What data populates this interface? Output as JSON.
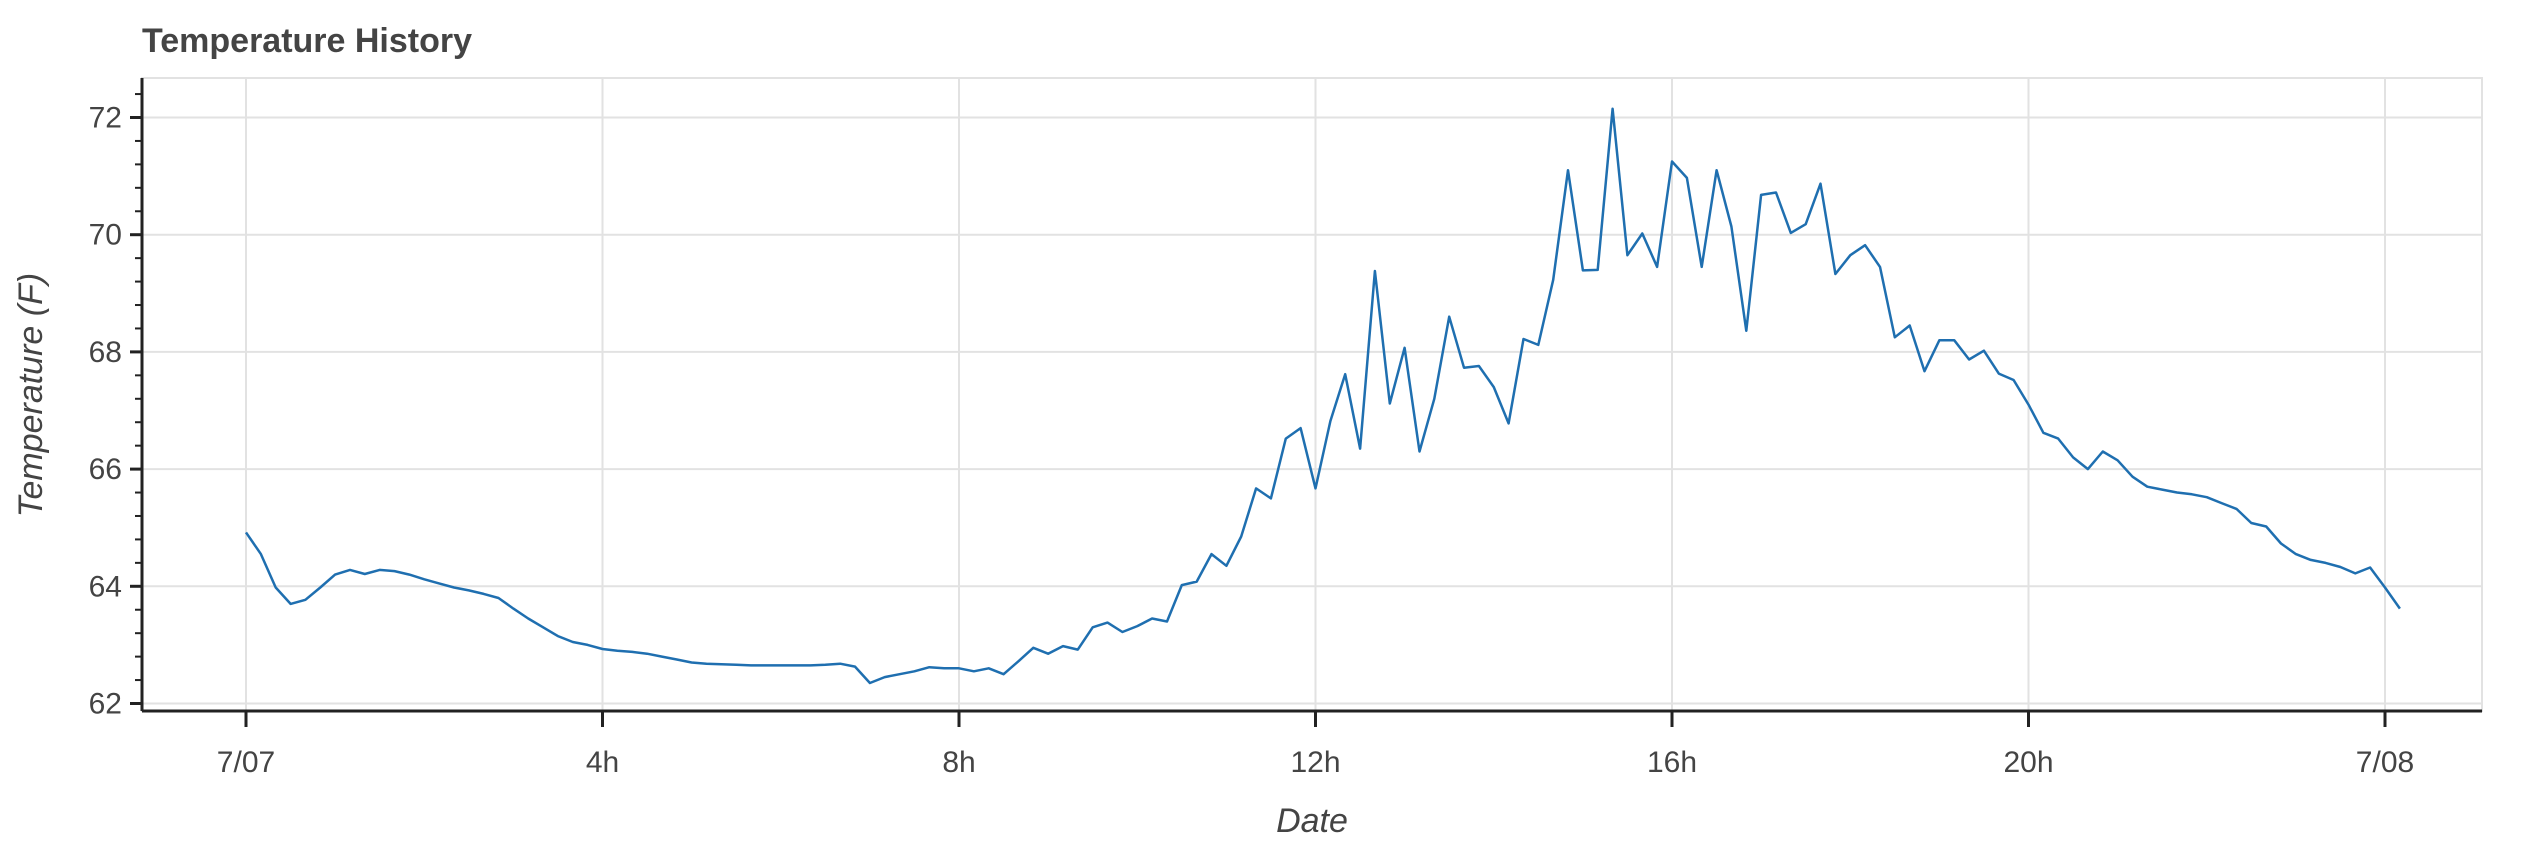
{
  "chart_data": {
    "type": "line",
    "title": "Temperature History",
    "xlabel": "Date",
    "ylabel": "Temperature (F)",
    "x_start": "7/07 00:00",
    "x_end": "7/08 00:00",
    "x_step_minutes": 10,
    "x_tick_hours": [
      0,
      4,
      8,
      12,
      16,
      20,
      24
    ],
    "x_tick_labels": [
      "7/07",
      "4h",
      "8h",
      "12h",
      "16h",
      "20h",
      "7/08"
    ],
    "ylim": [
      62,
      72.7
    ],
    "y_ticks": [
      62,
      64,
      66,
      68,
      70,
      72
    ],
    "y_tick_labels": [
      "62",
      "64",
      "66",
      "68",
      "70",
      "72"
    ],
    "grid": true,
    "legend": "none",
    "series": [
      {
        "color": "#1f6fb0",
        "values": [
          64.92,
          64.55,
          63.98,
          63.7,
          63.77,
          63.98,
          64.2,
          64.28,
          64.21,
          64.28,
          64.26,
          64.2,
          64.12,
          64.05,
          63.98,
          63.93,
          63.87,
          63.8,
          63.62,
          63.45,
          63.3,
          63.15,
          63.05,
          63.0,
          62.93,
          62.9,
          62.88,
          62.85,
          62.8,
          62.75,
          62.7,
          62.68,
          62.67,
          62.66,
          62.65,
          62.65,
          62.65,
          62.65,
          62.65,
          62.66,
          62.68,
          62.63,
          62.35,
          62.45,
          62.5,
          62.55,
          62.62,
          62.6,
          62.6,
          62.55,
          62.6,
          62.5,
          62.72,
          62.95,
          62.85,
          62.98,
          62.92,
          63.3,
          63.38,
          63.22,
          63.32,
          63.45,
          63.4,
          64.02,
          64.08,
          64.55,
          64.35,
          64.85,
          65.67,
          65.5,
          66.52,
          66.7,
          65.67,
          66.82,
          67.62,
          66.35,
          69.38,
          67.12,
          68.07,
          66.3,
          67.2,
          68.6,
          67.73,
          67.76,
          67.4,
          66.78,
          68.22,
          68.12,
          69.23,
          71.1,
          69.39,
          69.4,
          72.15,
          69.65,
          70.02,
          69.45,
          71.25,
          70.97,
          69.45,
          71.1,
          70.14,
          68.36,
          70.68,
          70.72,
          70.03,
          70.18,
          70.87,
          69.33,
          69.65,
          69.82,
          69.45,
          68.25,
          68.45,
          67.67,
          68.2,
          68.2,
          67.87,
          68.02,
          67.63,
          67.52,
          67.1,
          66.62,
          66.52,
          66.2,
          66.0,
          66.3,
          66.15,
          65.87,
          65.7,
          65.65,
          65.6,
          65.57,
          65.52,
          65.42,
          65.32,
          65.08,
          65.02,
          64.73,
          64.55,
          64.45,
          64.4,
          64.33,
          64.22,
          64.32,
          63.98,
          63.62
        ]
      }
    ]
  }
}
